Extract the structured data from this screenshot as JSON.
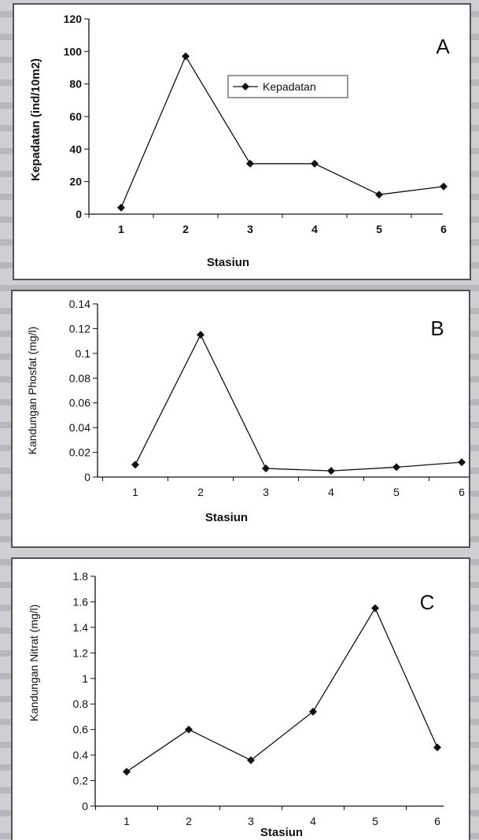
{
  "chart_data": [
    {
      "type": "line",
      "panel_letter": "A",
      "xlabel": "Stasiun",
      "ylabel": "Kepadatan (ind/10m2)",
      "categories": [
        "1",
        "2",
        "3",
        "4",
        "5",
        "6"
      ],
      "yticks": [
        "0",
        "20",
        "40",
        "60",
        "80",
        "100",
        "120"
      ],
      "ylim": [
        0,
        120
      ],
      "series": [
        {
          "name": "Kepadatan",
          "values": [
            4,
            97,
            31,
            31,
            12,
            17
          ]
        }
      ],
      "legend": "top-center",
      "grid": false
    },
    {
      "type": "line",
      "panel_letter": "B",
      "xlabel": "Stasiun",
      "ylabel": "Kandungan Phosfat (mg/l)",
      "categories": [
        "1",
        "2",
        "3",
        "4",
        "5",
        "6"
      ],
      "yticks": [
        "0",
        "0.02",
        "0.04",
        "0.06",
        "0.08",
        "0.1",
        "0.12",
        "0.14"
      ],
      "ylim": [
        0,
        0.14
      ],
      "series": [
        {
          "values": [
            0.01,
            0.115,
            0.007,
            0.005,
            0.008,
            0.012
          ]
        }
      ],
      "grid": false
    },
    {
      "type": "line",
      "panel_letter": "C",
      "xlabel": "Stasiun",
      "ylabel": "Kandungan Nitrat (mg/l)",
      "categories": [
        "1",
        "2",
        "3",
        "4",
        "5",
        "6"
      ],
      "yticks": [
        "0",
        "0.2",
        "0.4",
        "0.6",
        "0.8",
        "1",
        "1.2",
        "1.4",
        "1.6",
        "1.8"
      ],
      "ylim": [
        0,
        1.8
      ],
      "series": [
        {
          "values": [
            0.27,
            0.6,
            0.36,
            0.74,
            1.55,
            0.46
          ]
        }
      ],
      "grid": false
    }
  ]
}
